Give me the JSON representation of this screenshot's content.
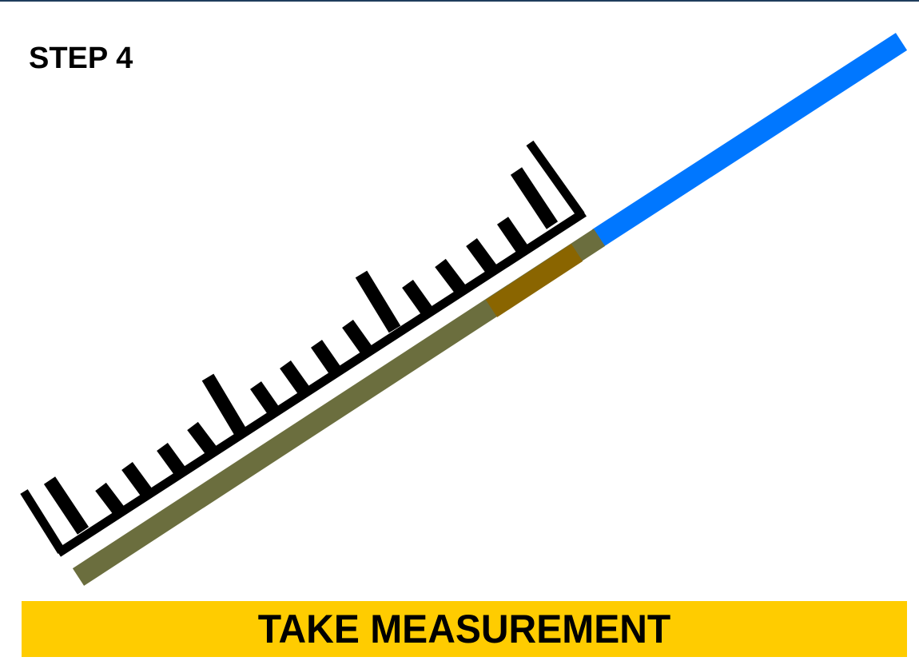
{
  "step": {
    "label": "STEP 4"
  },
  "banner": {
    "label": "TAKE MEASUREMENT"
  },
  "colors": {
    "top_rule": "#1f3d5c",
    "banner_bg": "#ffcc00",
    "text": "#000000",
    "ruler": "#000000",
    "rod_blue": "#0077ff",
    "rod_embedded": "#6b6e3e",
    "rod_mark": "#8a6500"
  },
  "icons": {
    "ruler": "ruler-icon",
    "rod": "probe-rod-icon"
  }
}
